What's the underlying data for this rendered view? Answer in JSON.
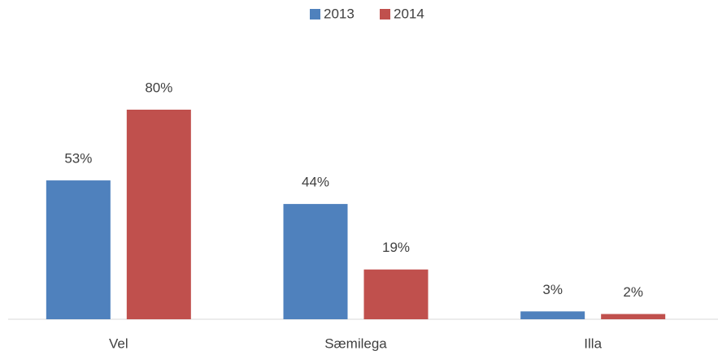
{
  "chart_data": {
    "type": "bar",
    "categories": [
      "Vel",
      "Sæmilega",
      "Illa"
    ],
    "series": [
      {
        "name": "2013",
        "color": "#4f81bd",
        "values": [
          53,
          44,
          3
        ],
        "value_labels": [
          "53%",
          "44%",
          "3%"
        ]
      },
      {
        "name": "2014",
        "color": "#c0504d",
        "values": [
          80,
          19,
          2
        ],
        "value_labels": [
          "80%",
          "19%",
          "2%"
        ]
      }
    ],
    "legend": "top"
  }
}
